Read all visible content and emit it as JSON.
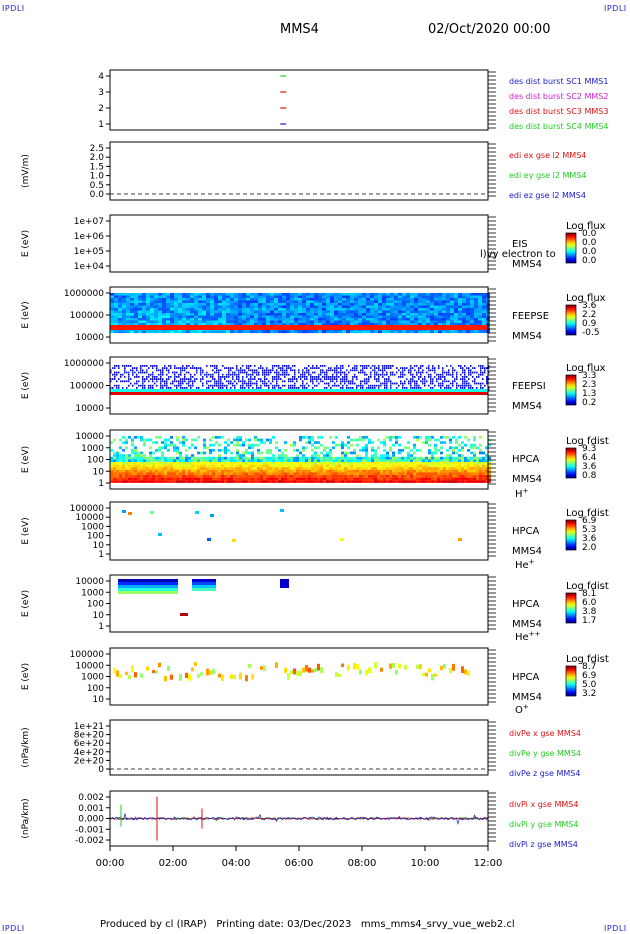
{
  "corner_label": "IPDLI",
  "header": {
    "spacecraft": "MMS4",
    "date": "02/Oct/2020 00:00"
  },
  "footer": {
    "produced_by": "Produced by cl (IRAP)",
    "printing_date": "Printing date: 03/Dec/2023",
    "script": "mms_mms4_srvy_vue_web2.cl"
  },
  "chart_data": {
    "type": "multi-panel timeseries",
    "x_ticks": [
      "00:00",
      "02:00",
      "04:00",
      "06:00",
      "08:00",
      "10:00",
      "12:00"
    ],
    "panels": [
      {
        "id": "des-dist-burst",
        "ylabel": "",
        "y_ticks": [
          "4",
          "3",
          "2",
          "1"
        ],
        "legend": [
          {
            "text": "des dist burst SC1 MMS1",
            "color": "#1a1acc"
          },
          {
            "text": "des dist burst SC2 MMS2",
            "color": "#cc22cc"
          },
          {
            "text": "des dist burst SC3 MMS3",
            "color": "#dd1111"
          },
          {
            "text": "des dist burst SC4 MMS4",
            "color": "#22cc22"
          }
        ],
        "markers": [
          {
            "sc": 4,
            "time": "05:30",
            "color": "#22cc22"
          },
          {
            "sc": 3,
            "time": "05:30",
            "color": "#dd1111"
          },
          {
            "sc": 2,
            "time": "05:30",
            "color": "#dd1111"
          },
          {
            "sc": 1,
            "time": "05:30",
            "color": "#1a1acc"
          }
        ]
      },
      {
        "id": "edi-e",
        "ylabel": "(mV/m)",
        "y_ticks": [
          "2.5",
          "2.0",
          "1.5",
          "1.0",
          "0.5",
          "0.0"
        ],
        "legend": [
          {
            "text": "edi ex gse l2 MMS4",
            "color": "#dd1111"
          },
          {
            "text": "edi ey gse l2 MMS4",
            "color": "#22cc22"
          },
          {
            "text": "edi ez gse l2 MMS4",
            "color": "#1a1acc"
          }
        ]
      },
      {
        "id": "eis",
        "ylabel": "E (eV)",
        "y_ticks": [
          "1e+07",
          "1e+06",
          "1e+05",
          "1e+04"
        ],
        "right_label": [
          "EIS",
          "MMS4"
        ],
        "overlay_text": "l)vy electron to",
        "colorbar": {
          "title": "Log flux",
          "ticks": [
            "0.0",
            "0.0",
            "0.0",
            "0.0"
          ]
        }
      },
      {
        "id": "feeps-e",
        "ylabel": "E (eV)",
        "y_ticks": [
          "1000000",
          "100000",
          "10000"
        ],
        "right_label": [
          "FEEPSE",
          "MMS4"
        ],
        "colorbar": {
          "title": "Log flux",
          "ticks": [
            "3.6",
            "2.2",
            "0.9",
            "-0.5"
          ]
        }
      },
      {
        "id": "feeps-i",
        "ylabel": "E (eV)",
        "y_ticks": [
          "1000000",
          "100000",
          "10000"
        ],
        "right_label": [
          "FEEPSI",
          "MMS4"
        ],
        "colorbar": {
          "title": "Log flux",
          "ticks": [
            "3.3",
            "2.3",
            "1.3",
            "0.2"
          ]
        }
      },
      {
        "id": "hpca-h",
        "ylabel": "E (eV)",
        "y_ticks": [
          "10000",
          "1000",
          "100",
          "10",
          "1"
        ],
        "right_label": [
          "HPCA",
          "MMS4"
        ],
        "species": "H",
        "charge": "+",
        "colorbar": {
          "title": "Log fdist",
          "ticks": [
            "9.3",
            "6.4",
            "3.6",
            "0.8"
          ]
        }
      },
      {
        "id": "hpca-he",
        "ylabel": "E (eV)",
        "y_ticks": [
          "100000",
          "10000",
          "1000",
          "100",
          "10",
          "1"
        ],
        "right_label": [
          "HPCA",
          "MMS4"
        ],
        "species": "He",
        "charge": "+",
        "colorbar": {
          "title": "Log fdist",
          "ticks": [
            "6.9",
            "5.3",
            "3.6",
            "2.0"
          ]
        }
      },
      {
        "id": "hpca-hepp",
        "ylabel": "E (eV)",
        "y_ticks": [
          "10000",
          "1000",
          "100",
          "10",
          "1"
        ],
        "right_label": [
          "HPCA",
          "MMS4"
        ],
        "species": "He",
        "charge": "++",
        "colorbar": {
          "title": "Log fdist",
          "ticks": [
            "8.1",
            "6.0",
            "3.8",
            "1.7"
          ]
        }
      },
      {
        "id": "hpca-o",
        "ylabel": "E (eV)",
        "y_ticks": [
          "100000",
          "10000",
          "1000",
          "100",
          "10"
        ],
        "right_label": [
          "HPCA",
          "MMS4"
        ],
        "species": "O",
        "charge": "+",
        "colorbar": {
          "title": "Log fdist",
          "ticks": [
            "8.7",
            "6.9",
            "5.0",
            "3.2"
          ]
        }
      },
      {
        "id": "divpe",
        "ylabel": "(nPa/km)",
        "y_ticks": [
          "1e+21",
          "8e+20",
          "6e+20",
          "4e+20",
          "2e+20",
          "0"
        ],
        "legend": [
          {
            "text": "divPe x gse MMS4",
            "color": "#dd1111"
          },
          {
            "text": "divPe y gse MMS4",
            "color": "#22cc22"
          },
          {
            "text": "divPe z gse MMS4",
            "color": "#1a1acc"
          }
        ]
      },
      {
        "id": "divpi",
        "ylabel": "(nPa/km)",
        "y_ticks": [
          "0.002",
          "0.001",
          "0.000",
          "-0.001",
          "-0.002"
        ],
        "legend": [
          {
            "text": "divPi x gse MMS4",
            "color": "#dd1111"
          },
          {
            "text": "divPi y gse MMS4",
            "color": "#22cc22"
          },
          {
            "text": "divPi z gse MMS4",
            "color": "#1a1acc"
          }
        ]
      }
    ]
  }
}
